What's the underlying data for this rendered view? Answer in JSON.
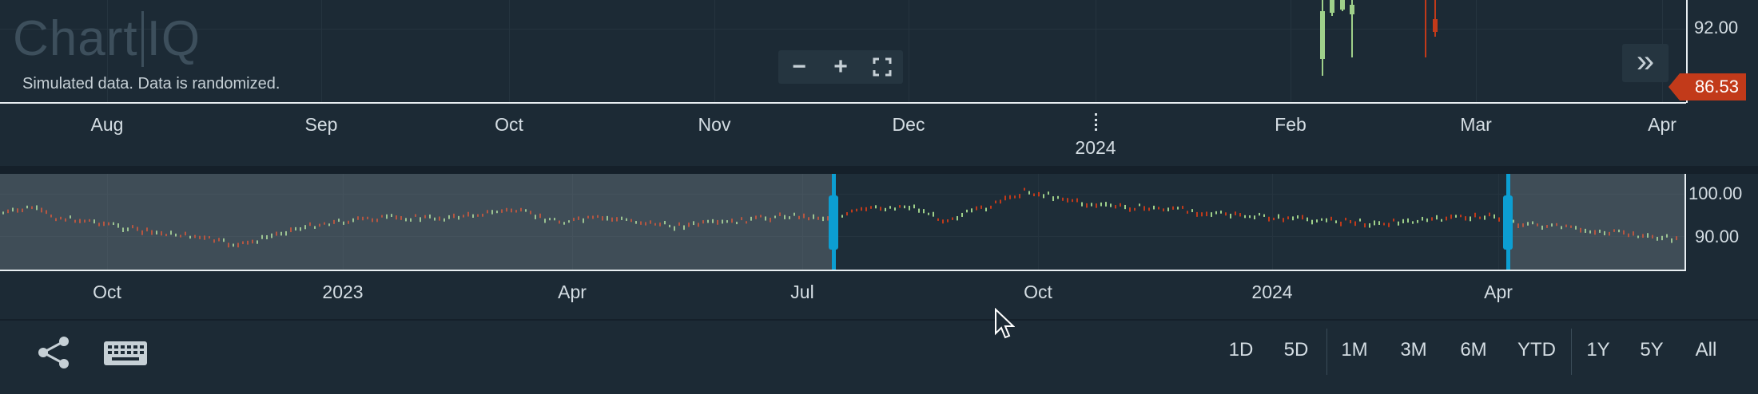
{
  "logo": {
    "left": "Chart",
    "right": "IQ"
  },
  "disclaimer": "Simulated data.  Data is randomized.",
  "zoom": {
    "zoom_out": "−",
    "zoom_in": "+",
    "fullscreen": "⛶"
  },
  "forward_icon": "»",
  "price_axis": {
    "labels": [
      "92.00"
    ],
    "current_price": "86.53",
    "current_price_color": "#c23a1a"
  },
  "main_xaxis": {
    "months": [
      "Aug",
      "Sep",
      "Oct",
      "Nov",
      "Dec",
      "Feb",
      "Mar",
      "Apr"
    ],
    "year": "2024"
  },
  "panel_axis": {
    "labels": [
      "100.00",
      "90.00"
    ]
  },
  "panel_xaxis": {
    "labels": [
      "Oct",
      "2023",
      "Apr",
      "Jul",
      "Oct",
      "2024",
      "Apr"
    ]
  },
  "toolbar": {
    "share_icon": "share-icon",
    "keyboard_icon": "keyboard-icon",
    "ranges": [
      "1D",
      "5D",
      "1M",
      "3M",
      "6M",
      "YTD",
      "1Y",
      "5Y",
      "All"
    ]
  },
  "colors": {
    "accent": "#0c9ed2",
    "up": "#9fd08a",
    "down": "#c23a1a",
    "background": "#1c2a35"
  }
}
